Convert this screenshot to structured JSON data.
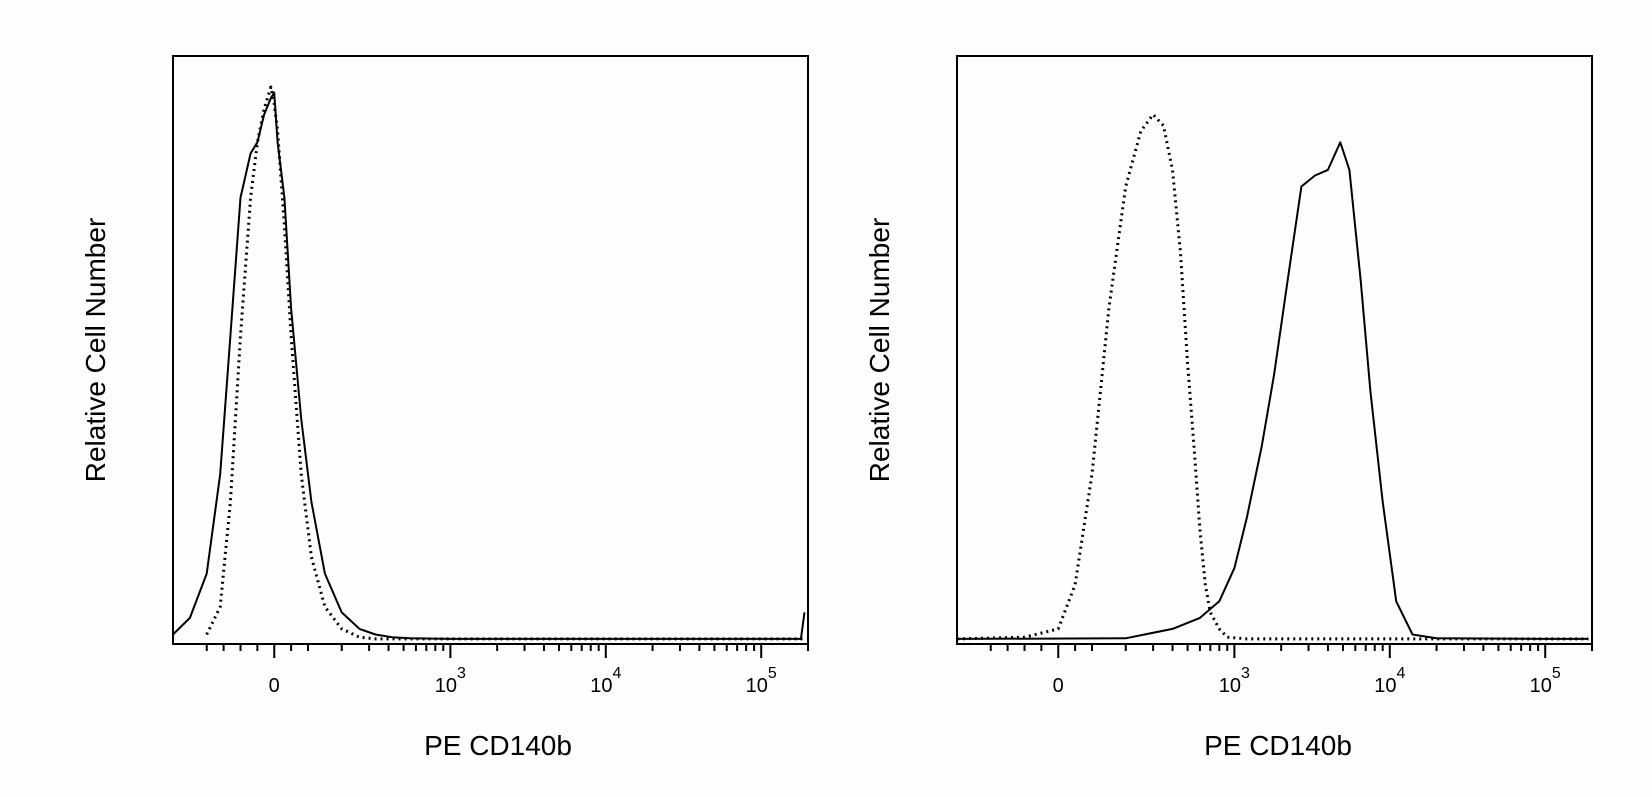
{
  "chart_data": [
    {
      "type": "line",
      "title": "",
      "xlabel": "PE CD140b",
      "ylabel": "Relative Cell Number",
      "x_scale": "logicle (biexponential)",
      "xlim": [
        -300,
        200000
      ],
      "ylim": [
        0,
        1
      ],
      "grid": false,
      "legend": "none",
      "x_ticks": [
        {
          "value": 0,
          "base": "0",
          "exp": ""
        },
        {
          "value": 1000,
          "base": "10",
          "exp": "3"
        },
        {
          "value": 10000,
          "base": "10",
          "exp": "4"
        },
        {
          "value": 100000,
          "base": "10",
          "exp": "5"
        }
      ],
      "series": [
        {
          "style": "solid",
          "x": [
            -300,
            -250,
            -200,
            -160,
            -130,
            -100,
            -70,
            -50,
            -30,
            -10,
            0,
            10,
            30,
            50,
            80,
            110,
            150,
            200,
            260,
            330,
            420,
            550,
            1000,
            10000,
            100000,
            180000,
            190000
          ],
          "y": [
            0.01,
            0.04,
            0.12,
            0.3,
            0.55,
            0.8,
            0.88,
            0.9,
            0.95,
            0.98,
            0.99,
            0.9,
            0.8,
            0.6,
            0.4,
            0.25,
            0.12,
            0.05,
            0.02,
            0.01,
            0.005,
            0.003,
            0.002,
            0.002,
            0.002,
            0.002,
            0.05
          ]
        },
        {
          "style": "dotted",
          "x": [
            -200,
            -160,
            -130,
            -100,
            -70,
            -50,
            -30,
            -10,
            0,
            10,
            30,
            50,
            80,
            110,
            150,
            200,
            260,
            330,
            1000,
            100000,
            190000
          ],
          "y": [
            0.01,
            0.06,
            0.25,
            0.55,
            0.8,
            0.9,
            0.96,
            1.0,
            0.97,
            0.92,
            0.75,
            0.55,
            0.3,
            0.15,
            0.06,
            0.02,
            0.005,
            0.002,
            0.002,
            0.002,
            0.002
          ]
        }
      ]
    },
    {
      "type": "line",
      "title": "",
      "xlabel": "PE CD140b",
      "ylabel": "Relative Cell Number",
      "x_scale": "logicle (biexponential)",
      "xlim": [
        -300,
        200000
      ],
      "ylim": [
        0,
        1
      ],
      "grid": false,
      "legend": "none",
      "x_ticks": [
        {
          "value": 0,
          "base": "0",
          "exp": ""
        },
        {
          "value": 1000,
          "base": "10",
          "exp": "3"
        },
        {
          "value": 10000,
          "base": "10",
          "exp": "4"
        },
        {
          "value": 100000,
          "base": "10",
          "exp": "5"
        }
      ],
      "series": [
        {
          "style": "solid",
          "x": [
            -300,
            200,
            400,
            600,
            800,
            1000,
            1200,
            1500,
            1800,
            2200,
            2700,
            3300,
            4000,
            4800,
            5500,
            6500,
            7500,
            9000,
            11000,
            14000,
            20000,
            100000,
            190000
          ],
          "y": [
            0.002,
            0.003,
            0.02,
            0.04,
            0.07,
            0.13,
            0.22,
            0.35,
            0.48,
            0.65,
            0.82,
            0.84,
            0.85,
            0.9,
            0.85,
            0.65,
            0.45,
            0.25,
            0.07,
            0.01,
            0.003,
            0.002,
            0.002
          ]
        },
        {
          "style": "dotted",
          "x": [
            -300,
            -100,
            0,
            50,
            100,
            150,
            200,
            250,
            300,
            350,
            400,
            450,
            500,
            550,
            600,
            650,
            700,
            800,
            900,
            1200,
            100000,
            190000
          ],
          "y": [
            0.002,
            0.005,
            0.02,
            0.1,
            0.3,
            0.6,
            0.82,
            0.92,
            0.95,
            0.93,
            0.85,
            0.7,
            0.5,
            0.35,
            0.2,
            0.1,
            0.05,
            0.02,
            0.005,
            0.002,
            0.002,
            0.002
          ]
        }
      ]
    }
  ]
}
